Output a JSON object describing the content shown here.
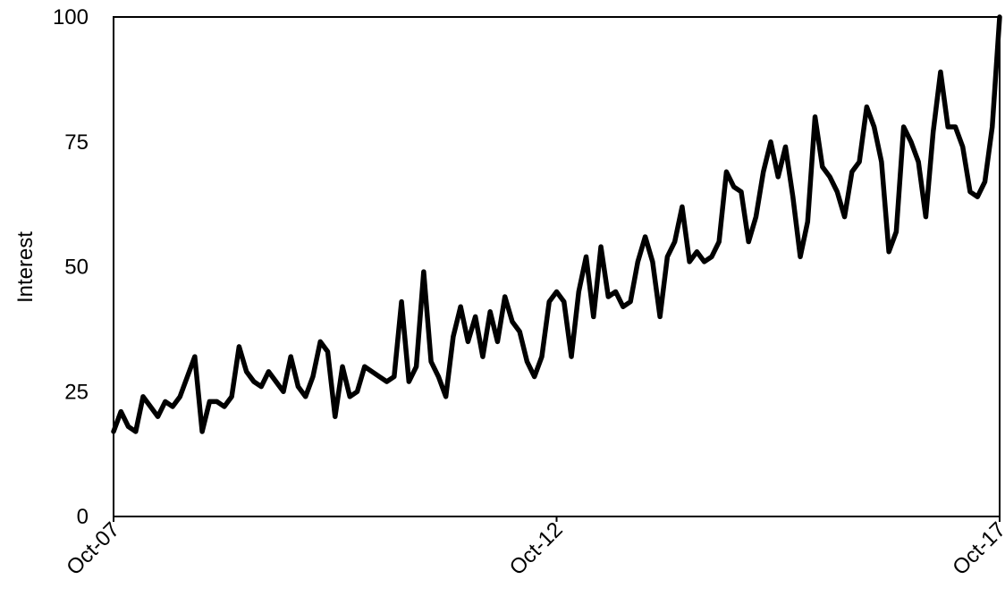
{
  "chart_data": {
    "type": "line",
    "title": "",
    "xlabel": "",
    "ylabel": "Interest",
    "ylim": [
      0,
      100
    ],
    "yticks": [
      0,
      25,
      50,
      75,
      100
    ],
    "xtick_labels": [
      "Oct-07",
      "Oct-12",
      "Oct-17"
    ],
    "grid": false,
    "legend": "none",
    "series": [
      {
        "color": "#000000",
        "values": [
          17,
          21,
          18,
          17,
          24,
          22,
          20,
          23,
          22,
          24,
          28,
          32,
          17,
          23,
          23,
          22,
          24,
          34,
          29,
          27,
          26,
          29,
          27,
          25,
          32,
          26,
          24,
          28,
          35,
          33,
          20,
          30,
          24,
          25,
          30,
          29,
          28,
          27,
          28,
          43,
          27,
          30,
          49,
          31,
          28,
          24,
          36,
          42,
          35,
          40,
          32,
          41,
          35,
          44,
          39,
          37,
          31,
          28,
          32,
          43,
          45,
          43,
          32,
          45,
          52,
          40,
          54,
          44,
          45,
          42,
          43,
          51,
          56,
          51,
          40,
          52,
          55,
          62,
          51,
          53,
          51,
          52,
          55,
          69,
          66,
          65,
          55,
          60,
          69,
          75,
          68,
          74,
          64,
          52,
          59,
          80,
          70,
          68,
          65,
          60,
          69,
          71,
          82,
          78,
          71,
          53,
          57,
          78,
          75,
          71,
          60,
          77,
          89,
          78,
          78,
          74,
          65,
          64,
          67,
          78,
          100
        ]
      }
    ]
  }
}
